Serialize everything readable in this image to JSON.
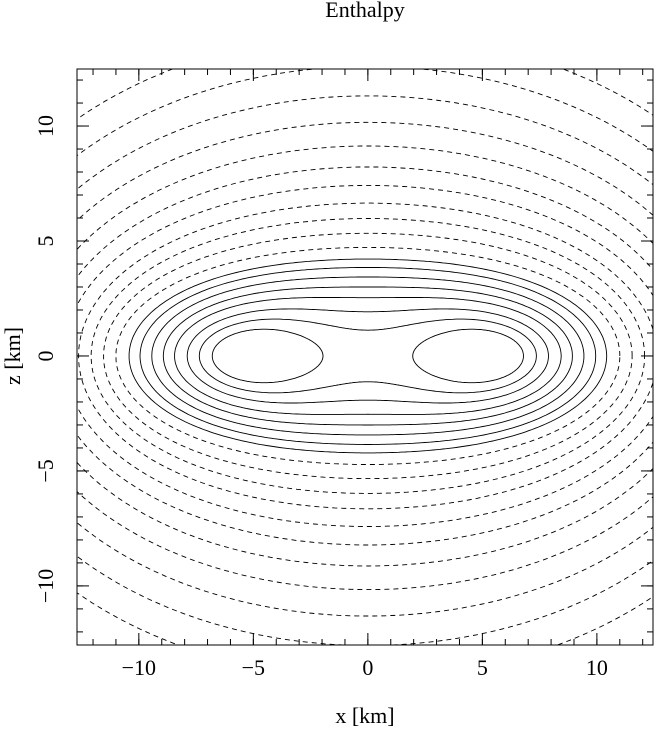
{
  "chart_data": {
    "type": "contour",
    "title": "Enthalpy",
    "x_label": "x [km]",
    "y_label": "z [km]",
    "xlim": [
      -12.7,
      12.45
    ],
    "ylim": [
      -12.57,
      12.48
    ],
    "xticks": [
      {
        "value": -10,
        "label": "−10"
      },
      {
        "value": -5,
        "label": "−5"
      },
      0,
      5,
      10
    ],
    "yticks": [
      {
        "value": -10,
        "label": "−10"
      },
      {
        "value": -5,
        "label": "−5"
      },
      0,
      5,
      10
    ]
  }
}
